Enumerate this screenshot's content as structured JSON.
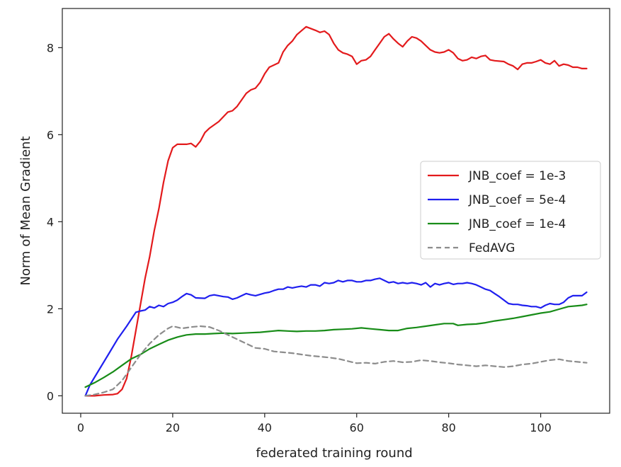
{
  "chart_data": {
    "type": "line",
    "title": "",
    "xlabel": "federated training round",
    "ylabel": "Norm of Mean Gradient",
    "xlim": [
      -4,
      115
    ],
    "ylim": [
      -0.4,
      8.9
    ],
    "xticks": [
      0,
      20,
      40,
      60,
      80,
      100
    ],
    "yticks": [
      0,
      2,
      4,
      6,
      8
    ],
    "grid": false,
    "legend_position": "center-right",
    "series": [
      {
        "name": "JNB_coef = 1e-3",
        "color": "#e31a1c",
        "dash": "solid",
        "points": [
          [
            1,
            0.0
          ],
          [
            3,
            0.0
          ],
          [
            5,
            0.02
          ],
          [
            7,
            0.03
          ],
          [
            8,
            0.05
          ],
          [
            9,
            0.15
          ],
          [
            10,
            0.4
          ],
          [
            11,
            0.9
          ],
          [
            12,
            1.5
          ],
          [
            13,
            2.1
          ],
          [
            14,
            2.7
          ],
          [
            15,
            3.2
          ],
          [
            16,
            3.8
          ],
          [
            17,
            4.3
          ],
          [
            18,
            4.9
          ],
          [
            19,
            5.4
          ],
          [
            20,
            5.7
          ],
          [
            21,
            5.78
          ],
          [
            22,
            5.78
          ],
          [
            23,
            5.78
          ],
          [
            24,
            5.8
          ],
          [
            25,
            5.72
          ],
          [
            26,
            5.85
          ],
          [
            27,
            6.05
          ],
          [
            28,
            6.15
          ],
          [
            30,
            6.3
          ],
          [
            32,
            6.52
          ],
          [
            33,
            6.55
          ],
          [
            34,
            6.65
          ],
          [
            36,
            6.95
          ],
          [
            37,
            7.03
          ],
          [
            38,
            7.07
          ],
          [
            39,
            7.2
          ],
          [
            40,
            7.4
          ],
          [
            41,
            7.55
          ],
          [
            43,
            7.65
          ],
          [
            44,
            7.9
          ],
          [
            45,
            8.05
          ],
          [
            46,
            8.15
          ],
          [
            47,
            8.3
          ],
          [
            49,
            8.48
          ],
          [
            51,
            8.4
          ],
          [
            52,
            8.35
          ],
          [
            53,
            8.38
          ],
          [
            54,
            8.3
          ],
          [
            55,
            8.1
          ],
          [
            56,
            7.95
          ],
          [
            57,
            7.88
          ],
          [
            58,
            7.85
          ],
          [
            59,
            7.8
          ],
          [
            60,
            7.62
          ],
          [
            61,
            7.7
          ],
          [
            62,
            7.72
          ],
          [
            63,
            7.8
          ],
          [
            64,
            7.95
          ],
          [
            65,
            8.1
          ],
          [
            66,
            8.25
          ],
          [
            67,
            8.32
          ],
          [
            68,
            8.2
          ],
          [
            69,
            8.1
          ],
          [
            70,
            8.02
          ],
          [
            71,
            8.15
          ],
          [
            72,
            8.25
          ],
          [
            73,
            8.22
          ],
          [
            74,
            8.15
          ],
          [
            75,
            8.05
          ],
          [
            76,
            7.95
          ],
          [
            77,
            7.9
          ],
          [
            78,
            7.88
          ],
          [
            79,
            7.9
          ],
          [
            80,
            7.95
          ],
          [
            81,
            7.88
          ],
          [
            82,
            7.75
          ],
          [
            83,
            7.7
          ],
          [
            84,
            7.72
          ],
          [
            85,
            7.78
          ],
          [
            86,
            7.75
          ],
          [
            87,
            7.8
          ],
          [
            88,
            7.82
          ],
          [
            89,
            7.72
          ],
          [
            90,
            7.7
          ],
          [
            92,
            7.68
          ],
          [
            93,
            7.62
          ],
          [
            94,
            7.58
          ],
          [
            95,
            7.5
          ],
          [
            96,
            7.62
          ],
          [
            97,
            7.65
          ],
          [
            98,
            7.65
          ],
          [
            99,
            7.68
          ],
          [
            100,
            7.72
          ],
          [
            101,
            7.65
          ],
          [
            102,
            7.62
          ],
          [
            103,
            7.7
          ],
          [
            104,
            7.58
          ],
          [
            105,
            7.62
          ],
          [
            106,
            7.6
          ],
          [
            107,
            7.55
          ],
          [
            108,
            7.55
          ],
          [
            109,
            7.52
          ],
          [
            110,
            7.52
          ]
        ]
      },
      {
        "name": "JNB_coef = 5e-4",
        "color": "#1f1fef",
        "dash": "solid",
        "points": [
          [
            1,
            0.0
          ],
          [
            2,
            0.25
          ],
          [
            4,
            0.6
          ],
          [
            6,
            0.95
          ],
          [
            8,
            1.3
          ],
          [
            10,
            1.6
          ],
          [
            12,
            1.92
          ],
          [
            13,
            1.95
          ],
          [
            14,
            1.97
          ],
          [
            15,
            2.05
          ],
          [
            16,
            2.02
          ],
          [
            17,
            2.08
          ],
          [
            18,
            2.05
          ],
          [
            19,
            2.12
          ],
          [
            20,
            2.15
          ],
          [
            21,
            2.2
          ],
          [
            22,
            2.28
          ],
          [
            23,
            2.35
          ],
          [
            24,
            2.32
          ],
          [
            25,
            2.25
          ],
          [
            27,
            2.24
          ],
          [
            28,
            2.3
          ],
          [
            29,
            2.32
          ],
          [
            30,
            2.3
          ],
          [
            31,
            2.28
          ],
          [
            32,
            2.27
          ],
          [
            33,
            2.22
          ],
          [
            34,
            2.25
          ],
          [
            35,
            2.3
          ],
          [
            36,
            2.35
          ],
          [
            37,
            2.32
          ],
          [
            38,
            2.3
          ],
          [
            39,
            2.33
          ],
          [
            40,
            2.36
          ],
          [
            41,
            2.38
          ],
          [
            42,
            2.42
          ],
          [
            43,
            2.45
          ],
          [
            44,
            2.45
          ],
          [
            45,
            2.5
          ],
          [
            46,
            2.48
          ],
          [
            47,
            2.5
          ],
          [
            48,
            2.52
          ],
          [
            49,
            2.5
          ],
          [
            50,
            2.55
          ],
          [
            51,
            2.55
          ],
          [
            52,
            2.52
          ],
          [
            53,
            2.6
          ],
          [
            54,
            2.58
          ],
          [
            55,
            2.6
          ],
          [
            56,
            2.65
          ],
          [
            57,
            2.62
          ],
          [
            58,
            2.65
          ],
          [
            59,
            2.65
          ],
          [
            60,
            2.62
          ],
          [
            61,
            2.62
          ],
          [
            62,
            2.65
          ],
          [
            63,
            2.65
          ],
          [
            64,
            2.68
          ],
          [
            65,
            2.7
          ],
          [
            66,
            2.65
          ],
          [
            67,
            2.6
          ],
          [
            68,
            2.62
          ],
          [
            69,
            2.58
          ],
          [
            70,
            2.6
          ],
          [
            71,
            2.58
          ],
          [
            72,
            2.6
          ],
          [
            73,
            2.58
          ],
          [
            74,
            2.55
          ],
          [
            75,
            2.6
          ],
          [
            76,
            2.5
          ],
          [
            77,
            2.58
          ],
          [
            78,
            2.55
          ],
          [
            79,
            2.58
          ],
          [
            80,
            2.6
          ],
          [
            81,
            2.56
          ],
          [
            82,
            2.58
          ],
          [
            83,
            2.58
          ],
          [
            84,
            2.6
          ],
          [
            85,
            2.58
          ],
          [
            86,
            2.55
          ],
          [
            87,
            2.5
          ],
          [
            88,
            2.45
          ],
          [
            89,
            2.42
          ],
          [
            90,
            2.35
          ],
          [
            91,
            2.28
          ],
          [
            92,
            2.2
          ],
          [
            93,
            2.12
          ],
          [
            94,
            2.1
          ],
          [
            95,
            2.1
          ],
          [
            96,
            2.08
          ],
          [
            97,
            2.07
          ],
          [
            98,
            2.05
          ],
          [
            99,
            2.05
          ],
          [
            100,
            2.02
          ],
          [
            101,
            2.08
          ],
          [
            102,
            2.12
          ],
          [
            103,
            2.1
          ],
          [
            104,
            2.1
          ],
          [
            105,
            2.15
          ],
          [
            106,
            2.25
          ],
          [
            107,
            2.3
          ],
          [
            108,
            2.3
          ],
          [
            109,
            2.3
          ],
          [
            110,
            2.38
          ]
        ]
      },
      {
        "name": "JNB_coef = 1e-4",
        "color": "#188c18",
        "dash": "solid",
        "points": [
          [
            1,
            0.2
          ],
          [
            3,
            0.3
          ],
          [
            5,
            0.42
          ],
          [
            7,
            0.55
          ],
          [
            9,
            0.7
          ],
          [
            11,
            0.85
          ],
          [
            13,
            0.95
          ],
          [
            15,
            1.08
          ],
          [
            17,
            1.18
          ],
          [
            19,
            1.28
          ],
          [
            21,
            1.35
          ],
          [
            23,
            1.4
          ],
          [
            25,
            1.42
          ],
          [
            27,
            1.42
          ],
          [
            29,
            1.43
          ],
          [
            31,
            1.44
          ],
          [
            33,
            1.43
          ],
          [
            35,
            1.44
          ],
          [
            37,
            1.45
          ],
          [
            39,
            1.46
          ],
          [
            41,
            1.48
          ],
          [
            43,
            1.5
          ],
          [
            45,
            1.49
          ],
          [
            47,
            1.48
          ],
          [
            49,
            1.49
          ],
          [
            51,
            1.49
          ],
          [
            53,
            1.5
          ],
          [
            55,
            1.52
          ],
          [
            57,
            1.53
          ],
          [
            59,
            1.54
          ],
          [
            61,
            1.56
          ],
          [
            63,
            1.54
          ],
          [
            65,
            1.52
          ],
          [
            67,
            1.5
          ],
          [
            69,
            1.5
          ],
          [
            71,
            1.55
          ],
          [
            73,
            1.57
          ],
          [
            75,
            1.6
          ],
          [
            77,
            1.63
          ],
          [
            79,
            1.66
          ],
          [
            81,
            1.66
          ],
          [
            82,
            1.62
          ],
          [
            84,
            1.64
          ],
          [
            86,
            1.65
          ],
          [
            88,
            1.68
          ],
          [
            90,
            1.72
          ],
          [
            92,
            1.75
          ],
          [
            94,
            1.78
          ],
          [
            96,
            1.82
          ],
          [
            98,
            1.86
          ],
          [
            100,
            1.9
          ],
          [
            102,
            1.93
          ],
          [
            104,
            1.99
          ],
          [
            106,
            2.05
          ],
          [
            108,
            2.07
          ],
          [
            109,
            2.08
          ],
          [
            110,
            2.1
          ]
        ]
      },
      {
        "name": "FedAVG",
        "color": "#8c8c8c",
        "dash": "dashed",
        "points": [
          [
            1,
            0.0
          ],
          [
            3,
            0.03
          ],
          [
            5,
            0.08
          ],
          [
            7,
            0.15
          ],
          [
            9,
            0.35
          ],
          [
            11,
            0.65
          ],
          [
            13,
            0.95
          ],
          [
            15,
            1.2
          ],
          [
            17,
            1.4
          ],
          [
            19,
            1.55
          ],
          [
            20,
            1.6
          ],
          [
            22,
            1.55
          ],
          [
            24,
            1.58
          ],
          [
            26,
            1.6
          ],
          [
            28,
            1.58
          ],
          [
            30,
            1.5
          ],
          [
            32,
            1.4
          ],
          [
            34,
            1.3
          ],
          [
            36,
            1.2
          ],
          [
            38,
            1.1
          ],
          [
            40,
            1.08
          ],
          [
            42,
            1.02
          ],
          [
            44,
            1.0
          ],
          [
            46,
            0.98
          ],
          [
            48,
            0.95
          ],
          [
            50,
            0.92
          ],
          [
            52,
            0.9
          ],
          [
            54,
            0.88
          ],
          [
            56,
            0.85
          ],
          [
            58,
            0.8
          ],
          [
            60,
            0.75
          ],
          [
            62,
            0.76
          ],
          [
            64,
            0.74
          ],
          [
            66,
            0.78
          ],
          [
            68,
            0.8
          ],
          [
            70,
            0.77
          ],
          [
            72,
            0.78
          ],
          [
            74,
            0.82
          ],
          [
            76,
            0.8
          ],
          [
            78,
            0.77
          ],
          [
            80,
            0.75
          ],
          [
            82,
            0.72
          ],
          [
            84,
            0.7
          ],
          [
            86,
            0.68
          ],
          [
            88,
            0.7
          ],
          [
            90,
            0.68
          ],
          [
            92,
            0.66
          ],
          [
            94,
            0.68
          ],
          [
            96,
            0.72
          ],
          [
            98,
            0.74
          ],
          [
            100,
            0.78
          ],
          [
            102,
            0.82
          ],
          [
            104,
            0.84
          ],
          [
            106,
            0.8
          ],
          [
            108,
            0.78
          ],
          [
            110,
            0.76
          ]
        ]
      }
    ]
  }
}
